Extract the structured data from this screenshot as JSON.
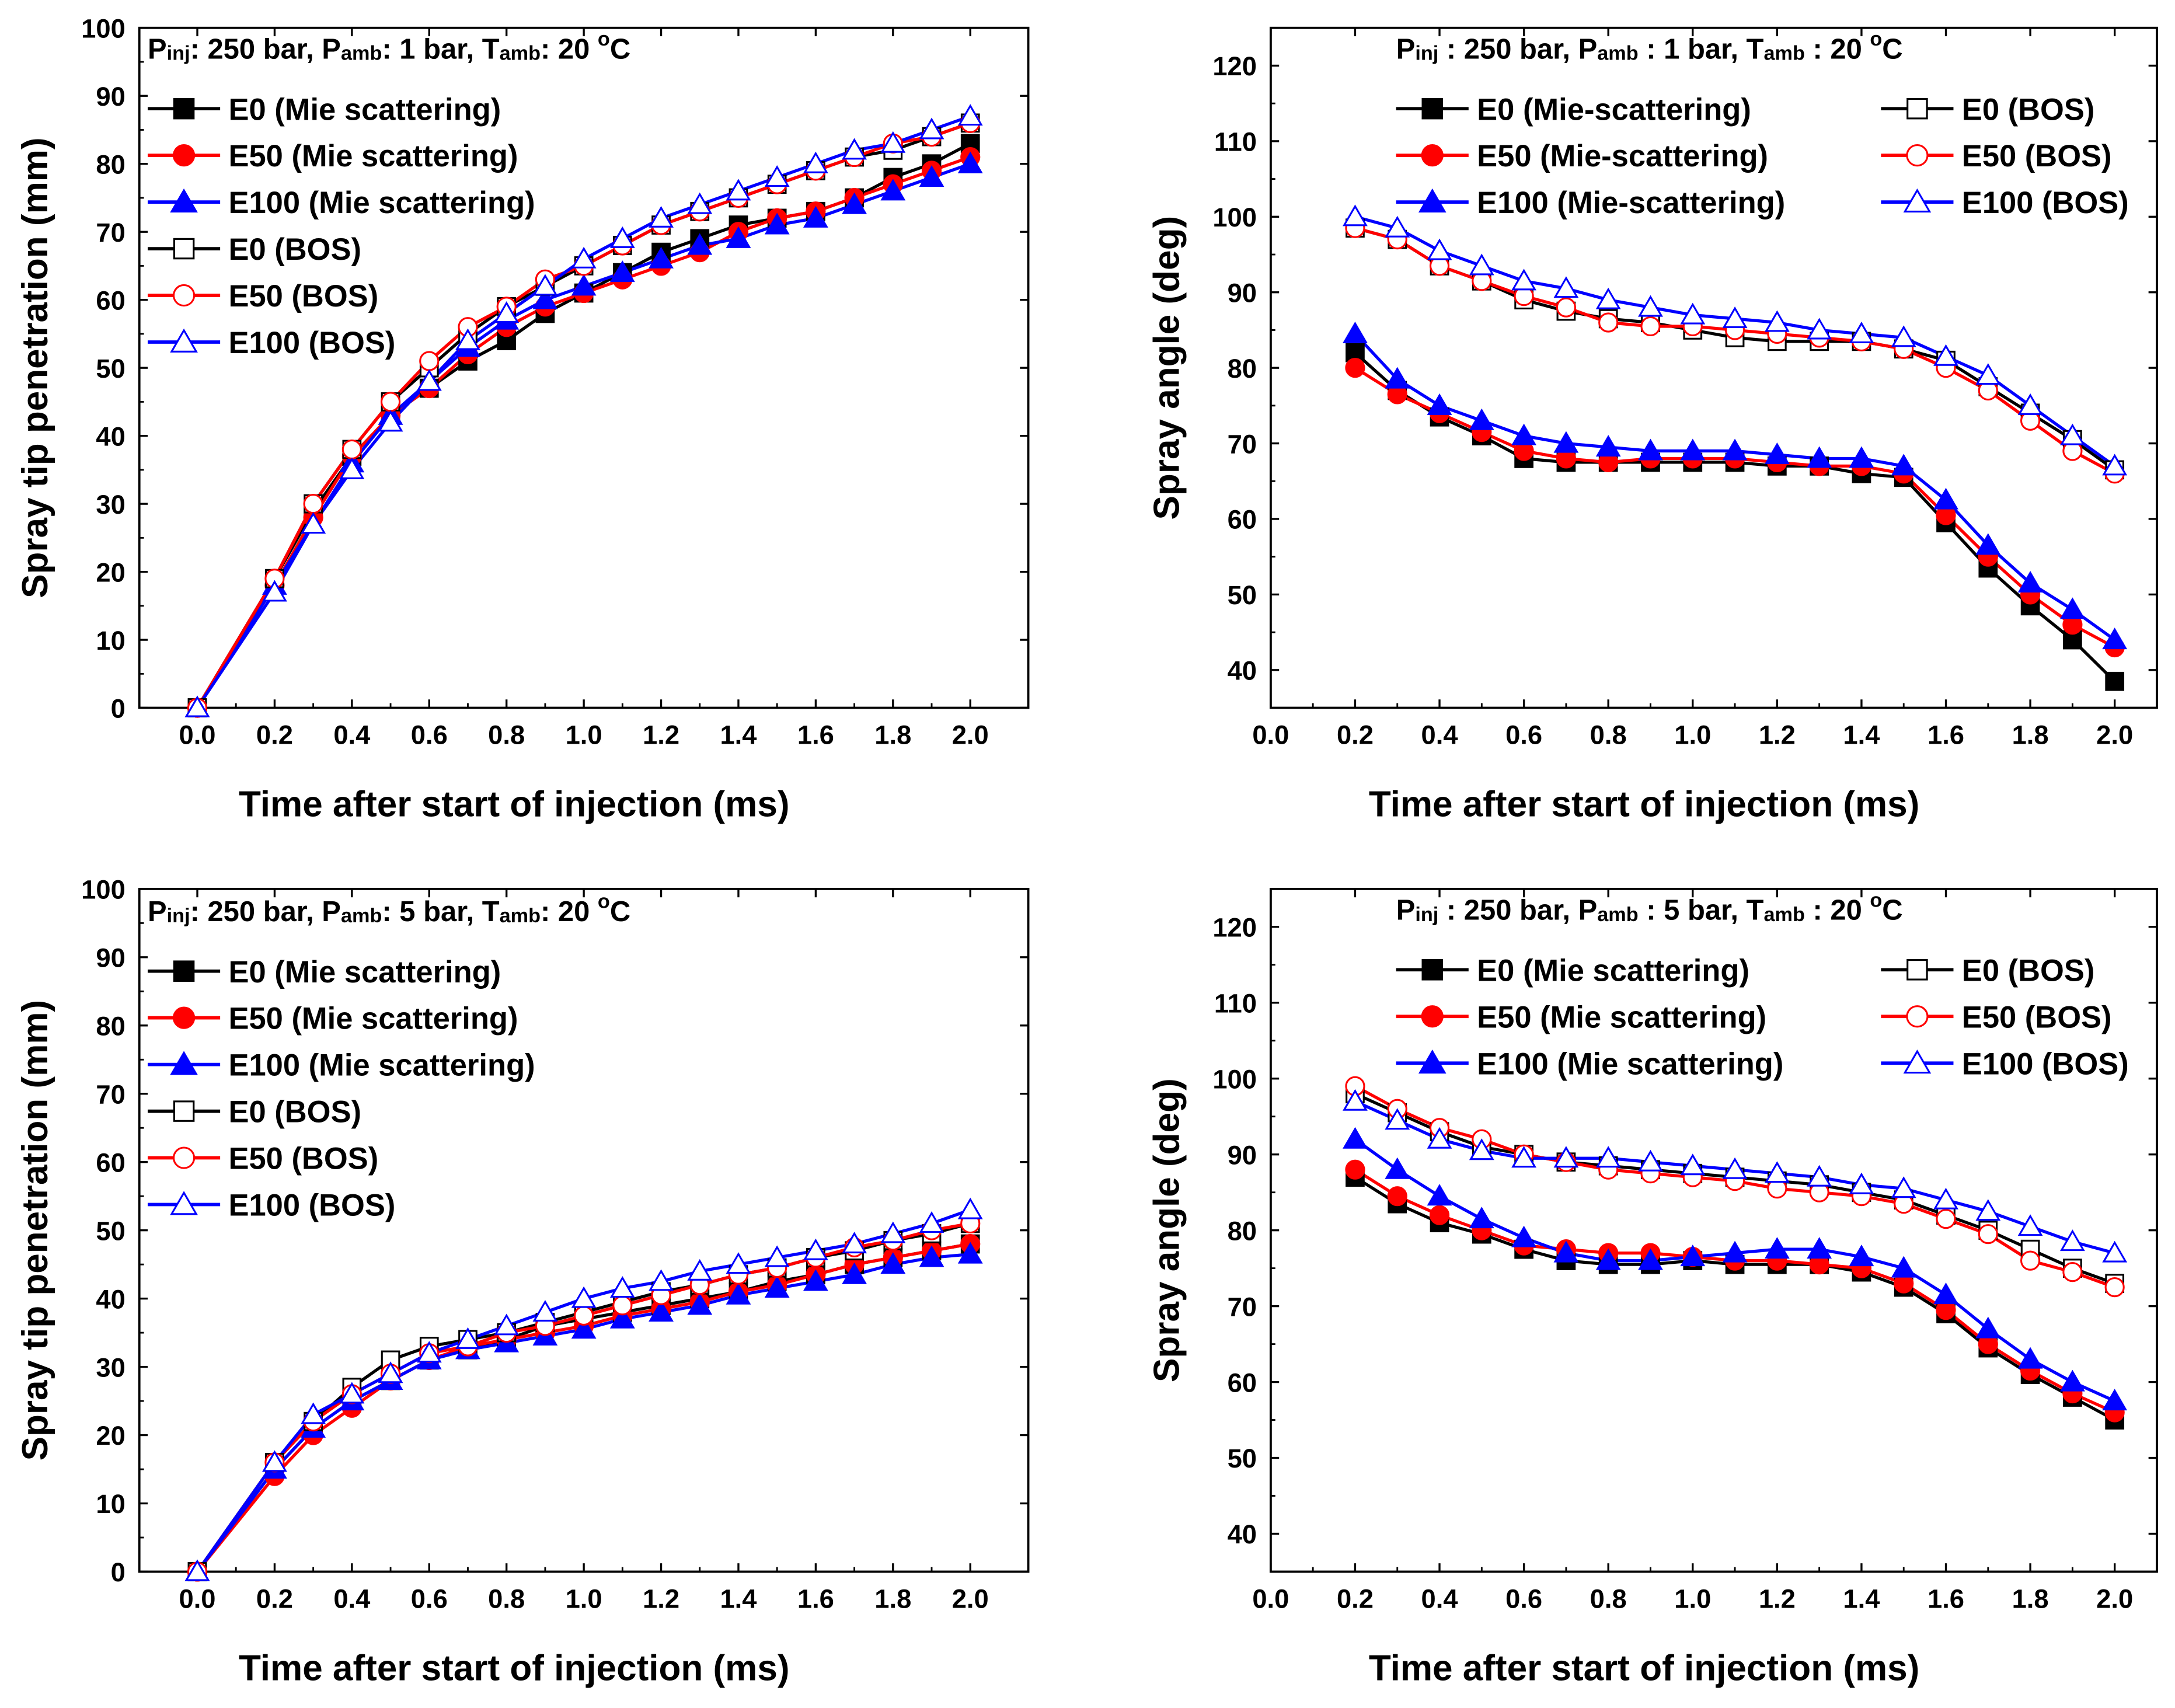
{
  "chart_data": [
    {
      "type": "line",
      "title": "Pinj: 250 bar, Pamb: 1 bar, Tamb: 20 oC",
      "annotation": {
        "segments": [
          {
            "t": "P"
          },
          {
            "t": "inj",
            "sub": true
          },
          {
            "t": ": 250 bar, P"
          },
          {
            "t": "amb",
            "sub": true
          },
          {
            "t": ": 1 bar, T"
          },
          {
            "t": "amb",
            "sub": true
          },
          {
            "t": ": 20 "
          },
          {
            "t": "o",
            "sup": true
          },
          {
            "t": "C"
          }
        ]
      },
      "xlabel": "Time after start of injection (ms)",
      "ylabel": "Spray tip penetration (mm)",
      "xlim": [
        -0.15,
        2.15
      ],
      "ylim": [
        0,
        100
      ],
      "xticks": [
        0.0,
        0.2,
        0.4,
        0.6,
        0.8,
        1.0,
        1.2,
        1.4,
        1.6,
        1.8,
        2.0
      ],
      "xtick_labels": [
        "0.0",
        "0.2",
        "0.4",
        "0.6",
        "0.8",
        "1.0",
        "1.2",
        "1.4",
        "1.6",
        "1.8",
        "2.0"
      ],
      "yticks": [
        0,
        10,
        20,
        30,
        40,
        50,
        60,
        70,
        80,
        90,
        100
      ],
      "ytick_labels": [
        "0",
        "10",
        "20",
        "30",
        "40",
        "50",
        "60",
        "70",
        "80",
        "90",
        "100"
      ],
      "legend_columns": 1,
      "x": [
        0.0,
        0.2,
        0.3,
        0.4,
        0.5,
        0.6,
        0.7,
        0.8,
        0.9,
        1.0,
        1.1,
        1.2,
        1.3,
        1.4,
        1.5,
        1.6,
        1.7,
        1.8,
        1.9,
        2.0
      ],
      "series": [
        {
          "name": "E0 (Mie scattering)",
          "color": "#000000",
          "marker": "square",
          "filled": true,
          "values": [
            0,
            19,
            29,
            37,
            43,
            47,
            51,
            54,
            58,
            61,
            64,
            67,
            69,
            71,
            72,
            73,
            75,
            78,
            80,
            83
          ]
        },
        {
          "name": "E50 (Mie scattering)",
          "color": "#ff0000",
          "marker": "circle",
          "filled": true,
          "values": [
            0,
            18,
            28,
            37,
            43,
            47,
            52,
            56,
            59,
            61,
            63,
            65,
            67,
            70,
            72,
            73,
            75,
            77,
            79,
            81
          ]
        },
        {
          "name": "E100 (Mie scattering)",
          "color": "#0000ff",
          "marker": "triangle",
          "filled": true,
          "values": [
            0,
            18,
            27,
            36,
            43,
            48,
            53,
            57,
            60,
            62,
            64,
            66,
            68,
            69,
            71,
            72,
            74,
            76,
            78,
            80
          ]
        },
        {
          "name": "E0 (BOS)",
          "color": "#000000",
          "marker": "square",
          "filled": false,
          "values": [
            0,
            19,
            30,
            38,
            45,
            50,
            55,
            59,
            62,
            65,
            68,
            71,
            73,
            75,
            77,
            79,
            81,
            82,
            84,
            86
          ]
        },
        {
          "name": "E50 (BOS)",
          "color": "#ff0000",
          "marker": "circle",
          "filled": false,
          "values": [
            0,
            19,
            30,
            38,
            45,
            51,
            56,
            59,
            63,
            65,
            68,
            71,
            73,
            75,
            77,
            79,
            81,
            83,
            84,
            86
          ]
        },
        {
          "name": "E100 (BOS)",
          "color": "#0000ff",
          "marker": "triangle",
          "filled": false,
          "values": [
            0,
            17,
            27,
            35,
            42,
            48,
            54,
            58,
            62,
            66,
            69,
            72,
            74,
            76,
            78,
            80,
            82,
            83,
            85,
            87
          ]
        }
      ]
    },
    {
      "type": "line",
      "title": "Pinj : 250 bar, Pamb : 1 bar, Tamb : 20 oC",
      "annotation": {
        "segments": [
          {
            "t": "P"
          },
          {
            "t": "inj",
            "sub": true
          },
          {
            "t": " : 250 bar, P"
          },
          {
            "t": "amb",
            "sub": true
          },
          {
            "t": " : 1 bar, T"
          },
          {
            "t": "amb",
            "sub": true
          },
          {
            "t": " : 20 "
          },
          {
            "t": "o",
            "sup": true
          },
          {
            "t": "C"
          }
        ]
      },
      "xlabel": "Time after start of injection (ms)",
      "ylabel": "Spray angle (deg)",
      "xlim": [
        0.0,
        2.1
      ],
      "ylim": [
        35,
        125
      ],
      "xticks": [
        0.0,
        0.2,
        0.4,
        0.6,
        0.8,
        1.0,
        1.2,
        1.4,
        1.6,
        1.8,
        2.0
      ],
      "xtick_labels": [
        "0.0",
        "0.2",
        "0.4",
        "0.6",
        "0.8",
        "1.0",
        "1.2",
        "1.4",
        "1.6",
        "1.8",
        "2.0"
      ],
      "yticks": [
        40,
        50,
        60,
        70,
        80,
        90,
        100,
        110,
        120
      ],
      "ytick_labels": [
        "40",
        "50",
        "60",
        "70",
        "80",
        "90",
        "100",
        "110",
        "120"
      ],
      "legend_columns": 2,
      "x": [
        0.2,
        0.3,
        0.4,
        0.5,
        0.6,
        0.7,
        0.8,
        0.9,
        1.0,
        1.1,
        1.2,
        1.3,
        1.4,
        1.5,
        1.6,
        1.7,
        1.8,
        1.9,
        2.0
      ],
      "series": [
        {
          "name": "E0 (Mie-scattering)",
          "color": "#000000",
          "marker": "square",
          "filled": true,
          "values": [
            82,
            77,
            73.5,
            71,
            68,
            67.5,
            67.5,
            67.5,
            67.5,
            67.5,
            67,
            67,
            66,
            65.5,
            59.5,
            53.5,
            48.5,
            44,
            38.5
          ]
        },
        {
          "name": "E50 (Mie-scattering)",
          "color": "#ff0000",
          "marker": "circle",
          "filled": true,
          "values": [
            80,
            76.5,
            74,
            71.5,
            69,
            68,
            67.5,
            68,
            68,
            68,
            67.5,
            67,
            67,
            66,
            60.5,
            55,
            50,
            46,
            43
          ]
        },
        {
          "name": "E100 (Mie-scattering)",
          "color": "#0000ff",
          "marker": "triangle",
          "filled": true,
          "values": [
            84.5,
            78.5,
            75,
            73,
            71,
            70,
            69.5,
            69,
            69,
            69,
            68.5,
            68,
            68,
            67,
            62.5,
            56.5,
            51.5,
            48,
            44
          ]
        },
        {
          "name": "E0 (BOS)",
          "color": "#000000",
          "marker": "square",
          "filled": false,
          "values": [
            98.5,
            97,
            93.5,
            91.5,
            89,
            87.5,
            86.5,
            86,
            85,
            84,
            83.5,
            83.5,
            83.5,
            82.5,
            81,
            77.5,
            74,
            70.5,
            66.5
          ]
        },
        {
          "name": "E50 (BOS)",
          "color": "#ff0000",
          "marker": "circle",
          "filled": false,
          "values": [
            98.5,
            97,
            93.5,
            91.5,
            89.5,
            88,
            86,
            85.5,
            85.5,
            85,
            84.5,
            84,
            83.5,
            82.5,
            80,
            77,
            73,
            69,
            66
          ]
        },
        {
          "name": "E100 (BOS)",
          "color": "#0000ff",
          "marker": "triangle",
          "filled": false,
          "values": [
            100,
            98.5,
            95.5,
            93.5,
            91.5,
            90.5,
            89,
            88,
            87,
            86.5,
            86,
            85,
            84.5,
            84,
            81.5,
            79,
            75,
            71,
            67
          ]
        }
      ]
    },
    {
      "type": "line",
      "title": "Pinj: 250 bar, Pamb: 5 bar, Tamb: 20 oC",
      "annotation": {
        "segments": [
          {
            "t": "P"
          },
          {
            "t": "inj",
            "sub": true
          },
          {
            "t": ": 250 bar, P"
          },
          {
            "t": "amb",
            "sub": true
          },
          {
            "t": ": 5 bar, T"
          },
          {
            "t": "amb",
            "sub": true
          },
          {
            "t": ": 20 "
          },
          {
            "t": "o",
            "sup": true
          },
          {
            "t": "C"
          }
        ]
      },
      "xlabel": "Time after start of injection (ms)",
      "ylabel": "Spray tip penetration (mm)",
      "xlim": [
        -0.15,
        2.15
      ],
      "ylim": [
        0,
        100
      ],
      "xticks": [
        0.0,
        0.2,
        0.4,
        0.6,
        0.8,
        1.0,
        1.2,
        1.4,
        1.6,
        1.8,
        2.0
      ],
      "xtick_labels": [
        "0.0",
        "0.2",
        "0.4",
        "0.6",
        "0.8",
        "1.0",
        "1.2",
        "1.4",
        "1.6",
        "1.8",
        "2.0"
      ],
      "yticks": [
        0,
        10,
        20,
        30,
        40,
        50,
        60,
        70,
        80,
        90,
        100
      ],
      "ytick_labels": [
        "0",
        "10",
        "20",
        "30",
        "40",
        "50",
        "60",
        "70",
        "80",
        "90",
        "100"
      ],
      "legend_columns": 1,
      "x": [
        0.0,
        0.2,
        0.3,
        0.4,
        0.5,
        0.6,
        0.7,
        0.8,
        0.9,
        1.0,
        1.1,
        1.2,
        1.3,
        1.4,
        1.5,
        1.6,
        1.7,
        1.8,
        1.9,
        2.0
      ],
      "series": [
        {
          "name": "E0 (Mie scattering)",
          "color": "#000000",
          "marker": "square",
          "filled": true,
          "values": [
            0,
            15,
            21,
            25,
            28,
            31,
            32.5,
            34,
            36,
            37,
            38,
            39,
            40,
            41,
            42.5,
            43.5,
            45,
            46,
            47,
            48
          ]
        },
        {
          "name": "E50 (Mie scattering)",
          "color": "#ff0000",
          "marker": "circle",
          "filled": true,
          "values": [
            0,
            14,
            20,
            24,
            28,
            31,
            33,
            34,
            35,
            36,
            37.5,
            38.5,
            39.5,
            41,
            42,
            43.5,
            45,
            46,
            47,
            48
          ]
        },
        {
          "name": "E100 (Mie scattering)",
          "color": "#0000ff",
          "marker": "triangle",
          "filled": true,
          "values": [
            0,
            15,
            21,
            25,
            28,
            31,
            32.5,
            33.5,
            34.5,
            35.5,
            37,
            38,
            39,
            40.5,
            41.5,
            42.5,
            43.5,
            45,
            46,
            46.5
          ]
        },
        {
          "name": "E0 (BOS)",
          "color": "#000000",
          "marker": "square",
          "filled": false,
          "values": [
            0,
            16,
            22,
            27,
            31,
            33,
            34,
            35,
            36.5,
            38,
            39.5,
            41,
            42,
            43.5,
            44.5,
            46,
            47,
            48.5,
            49.5,
            51
          ]
        },
        {
          "name": "E50 (BOS)",
          "color": "#ff0000",
          "marker": "circle",
          "filled": false,
          "values": [
            0,
            16,
            22,
            26,
            29,
            32,
            33,
            35,
            36,
            37.5,
            39,
            40.5,
            42,
            43.5,
            44.5,
            46,
            47.5,
            48.5,
            50,
            51
          ]
        },
        {
          "name": "E100 (BOS)",
          "color": "#0000ff",
          "marker": "triangle",
          "filled": false,
          "values": [
            0,
            16,
            23,
            26,
            29,
            32,
            34,
            36,
            38,
            40,
            41.5,
            42.5,
            44,
            45,
            46,
            47,
            48,
            49.5,
            51,
            53
          ]
        }
      ]
    },
    {
      "type": "line",
      "title": "Pinj : 250 bar, Pamb : 5 bar, Tamb : 20 oC",
      "annotation": {
        "segments": [
          {
            "t": "P"
          },
          {
            "t": "inj",
            "sub": true
          },
          {
            "t": " : 250 bar, P"
          },
          {
            "t": "amb",
            "sub": true
          },
          {
            "t": " : 5 bar, T"
          },
          {
            "t": "amb",
            "sub": true
          },
          {
            "t": " : 20 "
          },
          {
            "t": "o",
            "sup": true
          },
          {
            "t": "C"
          }
        ]
      },
      "xlabel": "Time after start of injection (ms)",
      "ylabel": "Spray angle (deg)",
      "xlim": [
        0.0,
        2.1
      ],
      "ylim": [
        35,
        125
      ],
      "xticks": [
        0.0,
        0.2,
        0.4,
        0.6,
        0.8,
        1.0,
        1.2,
        1.4,
        1.6,
        1.8,
        2.0
      ],
      "xtick_labels": [
        "0.0",
        "0.2",
        "0.4",
        "0.6",
        "0.8",
        "1.0",
        "1.2",
        "1.4",
        "1.6",
        "1.8",
        "2.0"
      ],
      "yticks": [
        40,
        50,
        60,
        70,
        80,
        90,
        100,
        110,
        120
      ],
      "ytick_labels": [
        "40",
        "50",
        "60",
        "70",
        "80",
        "90",
        "100",
        "110",
        "120"
      ],
      "legend_columns": 2,
      "x": [
        0.2,
        0.3,
        0.4,
        0.5,
        0.6,
        0.7,
        0.8,
        0.9,
        1.0,
        1.1,
        1.2,
        1.3,
        1.4,
        1.5,
        1.6,
        1.7,
        1.8,
        1.9,
        2.0
      ],
      "series": [
        {
          "name": "E0 (Mie scattering)",
          "color": "#000000",
          "marker": "square",
          "filled": true,
          "values": [
            87,
            83.5,
            81,
            79.5,
            77.5,
            76,
            75.5,
            75.5,
            76,
            75.5,
            75.5,
            75.5,
            74.5,
            72.5,
            69,
            64.5,
            61,
            58,
            55
          ]
        },
        {
          "name": "E50 (Mie scattering)",
          "color": "#ff0000",
          "marker": "circle",
          "filled": true,
          "values": [
            88,
            84.5,
            82,
            80,
            78,
            77.5,
            77,
            77,
            76.5,
            76,
            76,
            75.5,
            75,
            73,
            69.5,
            65,
            61.5,
            58.5,
            56
          ]
        },
        {
          "name": "E100 (Mie scattering)",
          "color": "#0000ff",
          "marker": "triangle",
          "filled": true,
          "values": [
            92,
            88,
            84.5,
            81.5,
            79,
            77,
            76,
            76,
            76.5,
            77,
            77.5,
            77.5,
            76.5,
            75,
            71.5,
            67,
            63,
            60,
            57.5
          ]
        },
        {
          "name": "E0 (BOS)",
          "color": "#000000",
          "marker": "square",
          "filled": false,
          "values": [
            98,
            95.5,
            93,
            91,
            90,
            89,
            88.5,
            88,
            87.5,
            87,
            86.5,
            86,
            85,
            84,
            82,
            80,
            77.5,
            75,
            73
          ]
        },
        {
          "name": "E50 (BOS)",
          "color": "#ff0000",
          "marker": "circle",
          "filled": false,
          "values": [
            99,
            96,
            93.5,
            92,
            90,
            89,
            88,
            87.5,
            87,
            86.5,
            85.5,
            85,
            84.5,
            83.5,
            81.5,
            79.5,
            76,
            74.5,
            72.5
          ]
        },
        {
          "name": "E100 (BOS)",
          "color": "#0000ff",
          "marker": "triangle",
          "filled": false,
          "values": [
            97,
            94.5,
            92,
            90.5,
            89.5,
            89.5,
            89.5,
            89,
            88.5,
            88,
            87.5,
            87,
            86,
            85.5,
            84,
            82.5,
            80.5,
            78.5,
            77
          ]
        }
      ]
    }
  ]
}
